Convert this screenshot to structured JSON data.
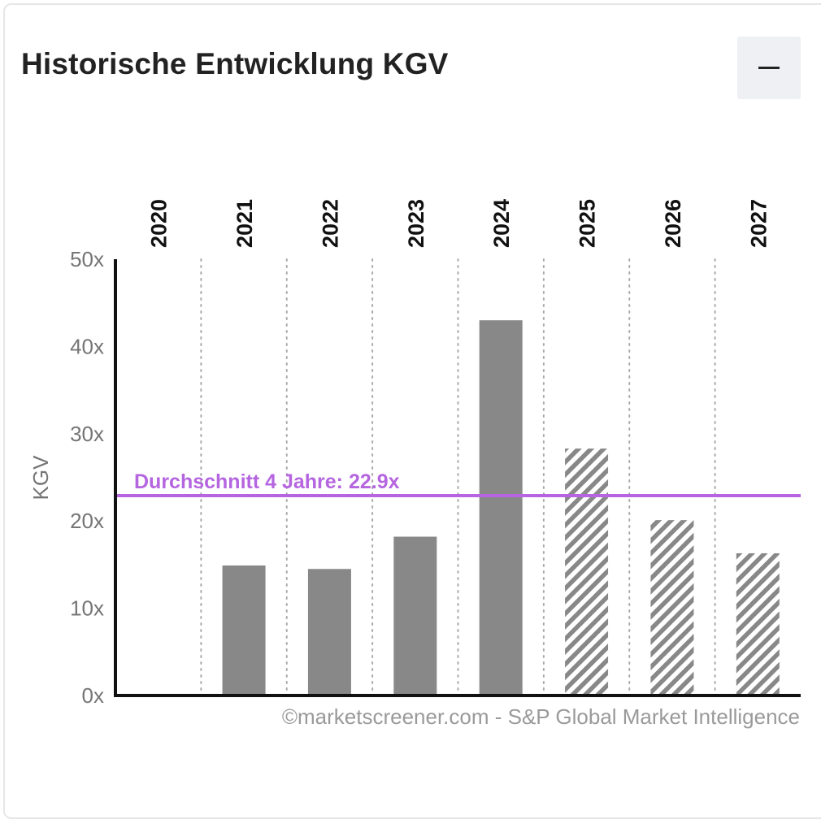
{
  "header": {
    "title": "Historische Entwicklung KGV",
    "collapse_icon": "minus-icon"
  },
  "credit": "©marketscreener.com - S&P Global Market Intelligence",
  "colors": {
    "bar_actual": "#888888",
    "bar_estimate_hatch": "#888888",
    "average_line": "#b565e0",
    "axis": "#111111",
    "grid": "#aaaaaa",
    "tick_label": "#757575"
  },
  "chart_data": {
    "type": "bar",
    "categories": [
      "2020",
      "2021",
      "2022",
      "2023",
      "2024",
      "2025",
      "2026",
      "2027"
    ],
    "values": [
      null,
      14.9,
      14.5,
      18.2,
      43.0,
      28.3,
      20.1,
      16.3
    ],
    "estimated": [
      false,
      false,
      false,
      false,
      false,
      true,
      true,
      true
    ],
    "ylabel": "KGV",
    "ylim": [
      0,
      50
    ],
    "yticks": [
      0,
      10,
      20,
      30,
      40,
      50
    ],
    "ytick_labels": [
      "0x",
      "10x",
      "20x",
      "30x",
      "40x",
      "50x"
    ],
    "xtick_position": "top",
    "grid": "vertical dotted",
    "average": {
      "value": 22.9,
      "label": "Durchschnitt 4 Jahre: 22.9x"
    }
  }
}
